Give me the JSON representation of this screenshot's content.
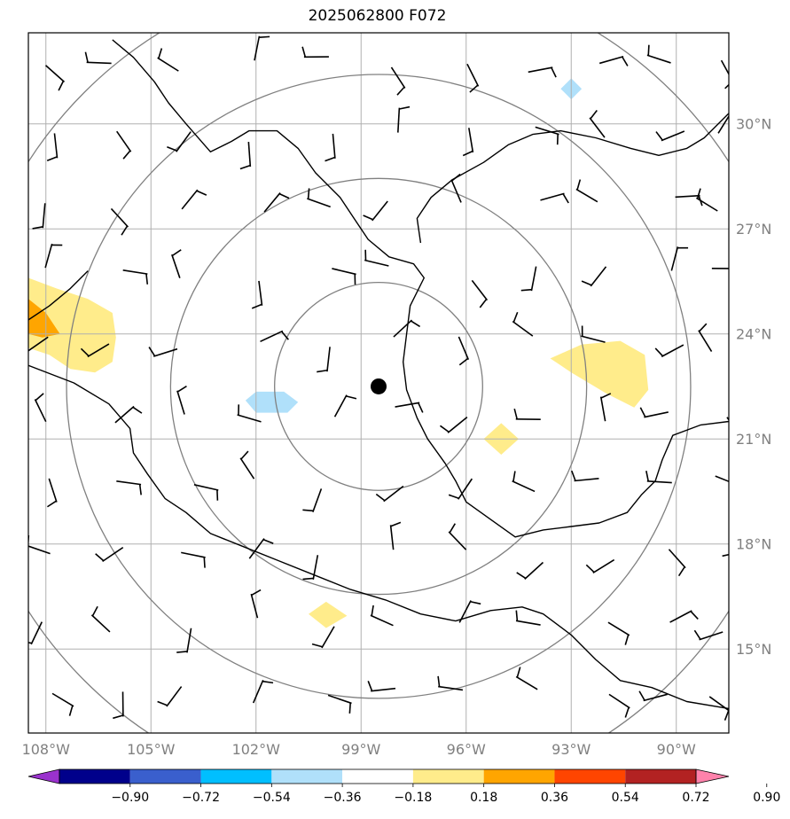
{
  "title": "2025062800 F072",
  "map": {
    "lon_range": [
      -108.5,
      -88.5
    ],
    "lat_range": [
      12.6,
      32.6
    ],
    "lon_ticks": [
      {
        "value": -108,
        "label": "108°W"
      },
      {
        "value": -105,
        "label": "105°W"
      },
      {
        "value": -102,
        "label": "102°W"
      },
      {
        "value": -99,
        "label": "99°W"
      },
      {
        "value": -96,
        "label": "96°W"
      },
      {
        "value": -93,
        "label": "93°W"
      },
      {
        "value": -90,
        "label": "90°W"
      }
    ],
    "lat_ticks": [
      {
        "value": 30,
        "label": "30°N"
      },
      {
        "value": 27,
        "label": "27°N"
      },
      {
        "value": 24,
        "label": "24°N"
      },
      {
        "value": 21,
        "label": "21°N"
      },
      {
        "value": 18,
        "label": "18°N"
      },
      {
        "value": 15,
        "label": "15°N"
      }
    ],
    "center": {
      "lon": -98.5,
      "lat": 22.5
    },
    "range_rings_deg": [
      3,
      6,
      9,
      12
    ],
    "grid": true,
    "colors": {
      "grid": "#b0b0b0",
      "ring": "#808080",
      "coast": "#000000"
    }
  },
  "contours": [
    {
      "color": "#ffec8b",
      "points": [
        [
          -108.5,
          25.6
        ],
        [
          -107.7,
          25.3
        ],
        [
          -106.8,
          25
        ],
        [
          -106.1,
          24.6
        ],
        [
          -106,
          23.9
        ],
        [
          -106.1,
          23.2
        ],
        [
          -106.6,
          22.9
        ],
        [
          -107.3,
          23
        ],
        [
          -107.9,
          23.4
        ],
        [
          -108.5,
          23.6
        ]
      ]
    },
    {
      "color": "#ffa500",
      "points": [
        [
          -108.5,
          25
        ],
        [
          -108,
          24.6
        ],
        [
          -107.6,
          24
        ],
        [
          -108.1,
          23.9
        ],
        [
          -108.5,
          24
        ]
      ]
    },
    {
      "color": "#ffec8b",
      "points": [
        [
          -93.6,
          23.3
        ],
        [
          -92.7,
          23.7
        ],
        [
          -91.6,
          23.8
        ],
        [
          -90.9,
          23.4
        ],
        [
          -90.8,
          22.4
        ],
        [
          -91.2,
          21.9
        ],
        [
          -92,
          22.3
        ],
        [
          -93,
          22.9
        ]
      ]
    },
    {
      "color": "#ffec8b",
      "points": [
        [
          -95.5,
          21
        ],
        [
          -95,
          21.45
        ],
        [
          -94.5,
          21
        ],
        [
          -95,
          20.55
        ]
      ]
    },
    {
      "color": "#ffec8b",
      "points": [
        [
          -100.5,
          16
        ],
        [
          -100,
          16.35
        ],
        [
          -99.4,
          15.95
        ],
        [
          -100,
          15.6
        ]
      ]
    },
    {
      "color": "#b0e0fa",
      "points": [
        [
          -102.3,
          22.1
        ],
        [
          -102,
          22.35
        ],
        [
          -101.2,
          22.35
        ],
        [
          -100.8,
          22.05
        ],
        [
          -101.1,
          21.75
        ],
        [
          -102,
          21.75
        ]
      ]
    },
    {
      "color": "#b0e0fa",
      "points": [
        [
          -93.3,
          31
        ],
        [
          -93,
          31.3
        ],
        [
          -92.7,
          31
        ],
        [
          -93,
          30.7
        ]
      ]
    }
  ],
  "coastline": [
    [
      -106.1,
      32.4
    ],
    [
      -105.5,
      31.9
    ],
    [
      -104.9,
      31.2
    ],
    [
      -104.5,
      30.6
    ],
    [
      -104,
      30
    ],
    [
      -103.3,
      29.2
    ],
    [
      -102.7,
      29.5
    ],
    [
      -102.2,
      29.8
    ],
    [
      -101.4,
      29.8
    ],
    [
      -100.8,
      29.3
    ],
    [
      -100.3,
      28.6
    ],
    [
      -99.6,
      27.9
    ],
    [
      -99.2,
      27.3
    ],
    [
      -98.8,
      26.7
    ],
    [
      -98.2,
      26.2
    ],
    [
      -97.5,
      26
    ],
    [
      -97.2,
      25.6
    ],
    [
      -97.6,
      24.8
    ],
    [
      -97.7,
      24.0
    ],
    [
      -97.8,
      23.2
    ],
    [
      -97.7,
      22.4
    ],
    [
      -97.4,
      21.6
    ],
    [
      -97.1,
      21.0
    ],
    [
      -96.6,
      20.3
    ],
    [
      -96.3,
      19.8
    ],
    [
      -96.0,
      19.2
    ],
    [
      -95.3,
      18.7
    ],
    [
      -94.6,
      18.2
    ],
    [
      -93.8,
      18.4
    ],
    [
      -93.0,
      18.5
    ],
    [
      -92.2,
      18.6
    ],
    [
      -91.4,
      18.9
    ],
    [
      -91.0,
      19.4
    ],
    [
      -90.6,
      19.8
    ],
    [
      -90.4,
      20.4
    ],
    [
      -90.1,
      21.1
    ],
    [
      -89.3,
      21.4
    ],
    [
      -88.5,
      21.5
    ]
  ],
  "coastline_west": [
    [
      -106.8,
      25.8
    ],
    [
      -107.3,
      25.3
    ],
    [
      -107.9,
      24.8
    ],
    [
      -108.5,
      24.4
    ]
  ],
  "coastline_pacific": [
    [
      -108.5,
      23.1
    ],
    [
      -107.2,
      22.6
    ],
    [
      -106.2,
      22
    ],
    [
      -105.6,
      21.3
    ],
    [
      -105.5,
      20.6
    ],
    [
      -105.1,
      20
    ],
    [
      -104.6,
      19.3
    ],
    [
      -104,
      18.9
    ],
    [
      -103.3,
      18.3
    ],
    [
      -102.3,
      17.9
    ],
    [
      -101.3,
      17.5
    ],
    [
      -100.3,
      17.1
    ],
    [
      -99.3,
      16.7
    ],
    [
      -98.3,
      16.4
    ],
    [
      -97.3,
      16.0
    ],
    [
      -96.3,
      15.8
    ],
    [
      -95.3,
      16.1
    ],
    [
      -94.4,
      16.2
    ],
    [
      -93.8,
      16.0
    ],
    [
      -93.0,
      15.4
    ],
    [
      -92.3,
      14.7
    ],
    [
      -91.6,
      14.1
    ],
    [
      -90.7,
      13.9
    ],
    [
      -89.7,
      13.5
    ],
    [
      -88.5,
      13.3
    ]
  ],
  "coastline_gulf_north": [
    [
      -97.3,
      26.6
    ],
    [
      -97.4,
      27.3
    ],
    [
      -97.0,
      27.9
    ],
    [
      -96.4,
      28.4
    ],
    [
      -95.5,
      28.9
    ],
    [
      -94.8,
      29.4
    ],
    [
      -94.1,
      29.7
    ],
    [
      -93.3,
      29.8
    ],
    [
      -92.3,
      29.6
    ],
    [
      -91.3,
      29.3
    ],
    [
      -90.5,
      29.1
    ],
    [
      -89.7,
      29.3
    ],
    [
      -89.2,
      29.6
    ],
    [
      -88.5,
      30.3
    ]
  ],
  "colorbar": {
    "segments": [
      "#9a32cd",
      "#00008b",
      "#3a5fcd",
      "#00bfff",
      "#b0e0fa",
      "#ffffff",
      "#ffec8b",
      "#ffa500",
      "#ff4500",
      "#b22222",
      "#ff82ab"
    ],
    "labels": [
      "−0.90",
      "−0.72",
      "−0.54",
      "−0.36",
      "−0.18",
      "0.18",
      "0.36",
      "0.54",
      "0.72",
      "0.90"
    ]
  },
  "storm_marker": {
    "lon": -98.5,
    "lat": 22.5
  }
}
